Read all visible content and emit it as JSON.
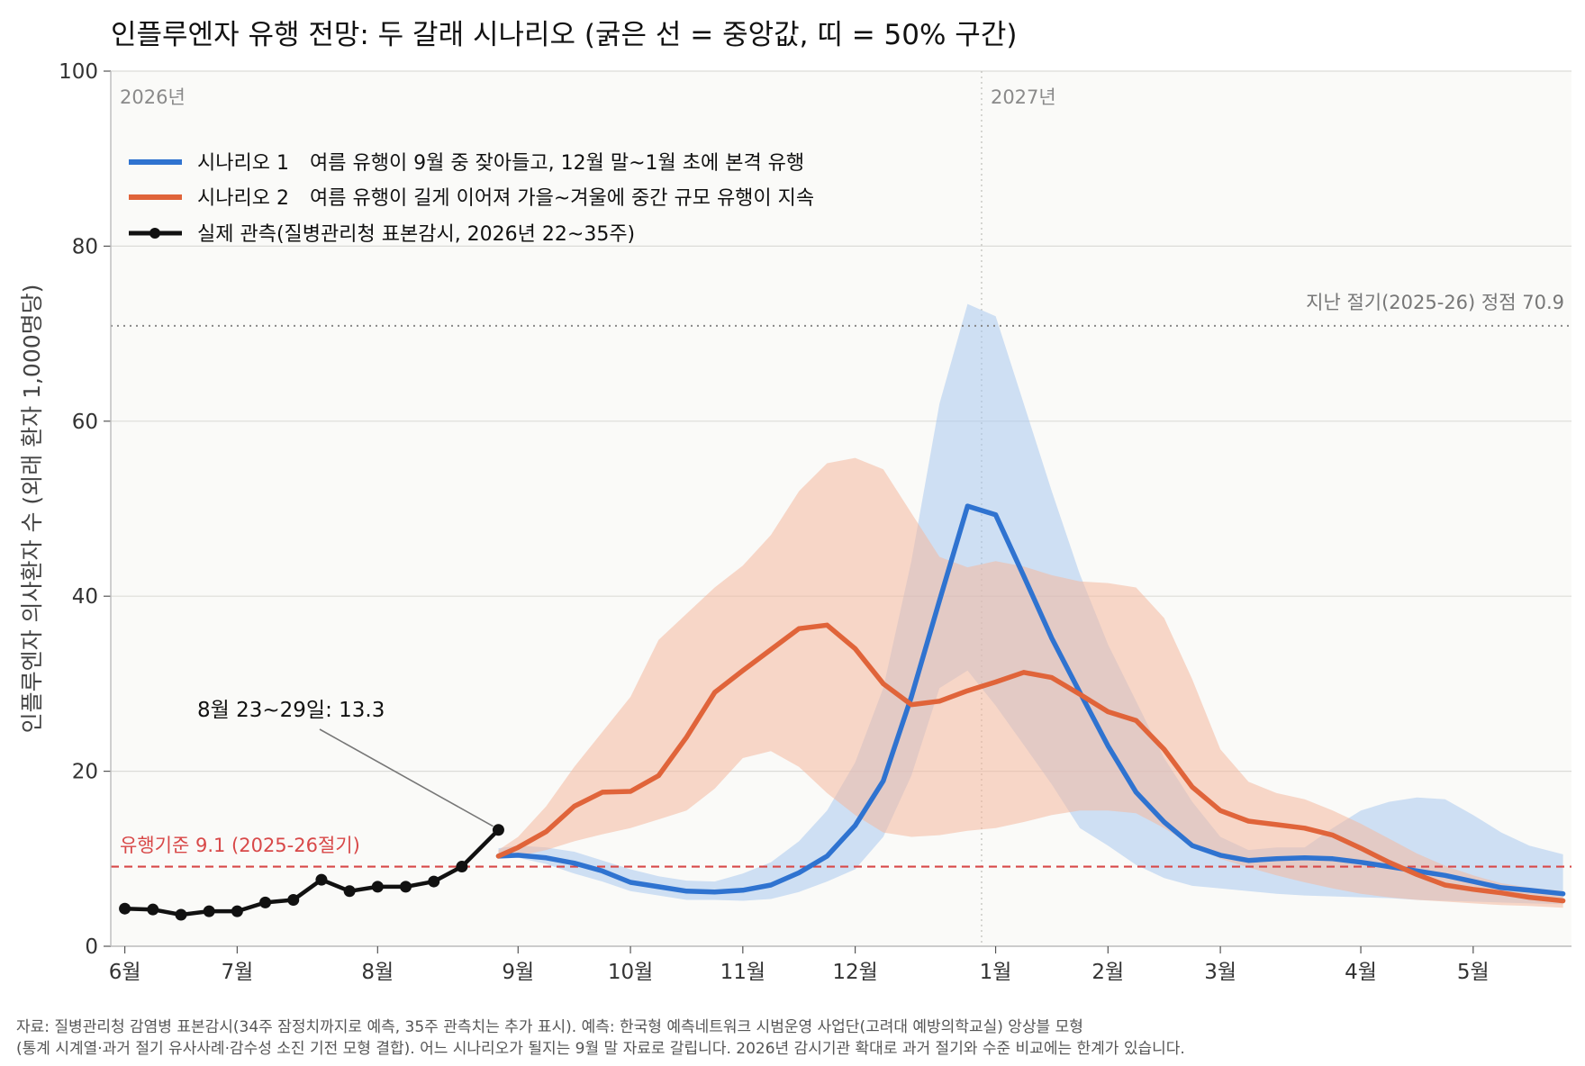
{
  "chart_data": {
    "type": "line",
    "title": "인플루엔자 유행 전망: 두 갈래 시나리오 (굵은 선 = 중앙값, 띠 = 50% 구간)",
    "ylabel": "인플루엔자 의사환자 수 (외래 환자 1,000명당)",
    "xlabel": "",
    "ylim": [
      0,
      100
    ],
    "yticks": [
      "0",
      "20",
      "40",
      "60",
      "80",
      "100"
    ],
    "grid": "horizontal",
    "legend_position": "top-left",
    "x_axis": {
      "unit": "weeks from June 1, 2026",
      "range": [
        -0.5,
        51.5
      ],
      "ticks": [
        {
          "label": "6월",
          "week": 0
        },
        {
          "label": "7월",
          "week": 4
        },
        {
          "label": "8월",
          "week": 9
        },
        {
          "label": "9월",
          "week": 14
        },
        {
          "label": "10월",
          "week": 18
        },
        {
          "label": "11월",
          "week": 22
        },
        {
          "label": "12월",
          "week": 26
        },
        {
          "label": "1월",
          "week": 31
        },
        {
          "label": "2월",
          "week": 35
        },
        {
          "label": "3월",
          "week": 39
        },
        {
          "label": "4월",
          "week": 44
        },
        {
          "label": "5월",
          "week": 48
        }
      ]
    },
    "year_labels": [
      {
        "text": "2026년",
        "week": -0.5
      },
      {
        "text": "2027년",
        "week": 30.5
      }
    ],
    "year_divider_week": 30.5,
    "reference_lines": [
      {
        "label": "지난 절기(2025-26) 정점 70.9",
        "value": 70.9,
        "color": "#888888",
        "style": "dotted"
      },
      {
        "label": "유행기준 9.1 (2025-26절기)",
        "value": 9.1,
        "color": "#d84848",
        "style": "dashed"
      }
    ],
    "series": [
      {
        "name": "시나리오 1",
        "description": "여름 유행이 9월 중 잦아들고, 12월 말~1월 초에 본격 유행",
        "color": "#2f73d0",
        "band_color": "#a9c9ef",
        "x": [
          13.3,
          14,
          15,
          16,
          17,
          18,
          19,
          20,
          21,
          22,
          23,
          24,
          25,
          26,
          27,
          28,
          29,
          30,
          31,
          32,
          33,
          34,
          35,
          36,
          37,
          38,
          39,
          40,
          41,
          42,
          43,
          44,
          45,
          46,
          47,
          48,
          49,
          50,
          51.2
        ],
        "median": [
          10.3,
          10.4,
          10.1,
          9.5,
          8.6,
          7.3,
          6.8,
          6.3,
          6.2,
          6.4,
          7.0,
          8.4,
          10.3,
          13.8,
          18.9,
          28.5,
          39.5,
          50.3,
          49.3,
          42.3,
          35.2,
          29.0,
          22.9,
          17.6,
          14.2,
          11.5,
          10.4,
          9.8,
          10.0,
          10.1,
          10.0,
          9.6,
          9.1,
          8.6,
          8.1,
          7.4,
          6.7,
          6.4,
          6.0
        ],
        "lower": [
          10.0,
          10.1,
          9.4,
          8.3,
          7.4,
          6.3,
          5.8,
          5.3,
          5.3,
          5.2,
          5.4,
          6.2,
          7.4,
          8.8,
          12.5,
          19.5,
          29.5,
          31.5,
          27.5,
          23.0,
          18.5,
          13.5,
          11.5,
          9.3,
          7.8,
          6.9,
          6.6,
          6.3,
          6.0,
          5.8,
          5.7,
          5.6,
          5.5,
          5.3,
          5.2,
          5.1,
          5.0,
          4.9,
          4.8
        ],
        "upper": [
          11.2,
          11.5,
          11.3,
          10.8,
          9.8,
          8.8,
          8.0,
          7.5,
          7.4,
          8.3,
          9.6,
          12.0,
          15.5,
          21.0,
          29.5,
          44.0,
          62.0,
          73.4,
          72.0,
          62.0,
          52.0,
          42.5,
          34.5,
          28.0,
          21.5,
          16.5,
          12.5,
          11.0,
          11.3,
          11.3,
          13.5,
          15.5,
          16.5,
          17.0,
          16.8,
          15.0,
          13.0,
          11.5,
          10.5
        ]
      },
      {
        "name": "시나리오 2",
        "description": "여름 유행이 길게 이어져 가을~겨울에 중간 규모 유행이 지속",
        "color": "#e0643a",
        "band_color": "#f4b89e",
        "x": [
          13.3,
          14,
          15,
          16,
          17,
          18,
          19,
          20,
          21,
          22,
          23,
          24,
          25,
          26,
          27,
          28,
          29,
          30,
          31,
          32,
          33,
          34,
          35,
          36,
          37,
          38,
          39,
          40,
          41,
          42,
          43,
          44,
          45,
          46,
          47,
          48,
          49,
          50,
          51.2
        ],
        "median": [
          10.3,
          11.3,
          13.1,
          16.0,
          17.6,
          17.7,
          19.5,
          23.9,
          29.0,
          31.5,
          33.9,
          36.3,
          36.7,
          34.0,
          30.0,
          27.6,
          28.0,
          29.2,
          30.2,
          31.3,
          30.7,
          28.8,
          26.8,
          25.8,
          22.5,
          18.2,
          15.5,
          14.3,
          13.9,
          13.5,
          12.7,
          11.2,
          9.6,
          8.2,
          7.0,
          6.5,
          6.1,
          5.6,
          5.2
        ],
        "lower": [
          10.0,
          10.3,
          11.0,
          12.0,
          12.8,
          13.5,
          14.5,
          15.5,
          18.0,
          21.5,
          22.3,
          20.5,
          17.5,
          15.0,
          13.0,
          12.5,
          12.7,
          13.2,
          13.5,
          14.2,
          15.0,
          15.5,
          15.5,
          15.2,
          13.5,
          11.5,
          10.0,
          9.0,
          8.1,
          7.3,
          6.6,
          6.0,
          5.6,
          5.3,
          5.1,
          4.9,
          4.7,
          4.6,
          4.4
        ],
        "upper": [
          11.0,
          12.5,
          16.0,
          20.5,
          24.5,
          28.5,
          35.0,
          38.0,
          41.0,
          43.5,
          47.0,
          52.0,
          55.2,
          55.8,
          54.5,
          49.5,
          44.5,
          43.3,
          44.0,
          43.4,
          42.4,
          41.7,
          41.5,
          41.0,
          37.5,
          30.5,
          22.5,
          18.8,
          17.5,
          16.8,
          15.5,
          14.0,
          12.3,
          10.6,
          9.2,
          8.1,
          7.2,
          6.7,
          6.3
        ]
      },
      {
        "name": "실제 관측(질병관리청 표본감시, 2026년 22~35주)",
        "color": "#111111",
        "x": [
          0,
          1,
          2,
          3,
          4,
          5,
          6,
          7,
          8,
          9,
          10,
          11,
          12,
          13.3
        ],
        "values": [
          4.3,
          4.2,
          3.6,
          4.0,
          4.0,
          5.0,
          5.3,
          7.6,
          6.3,
          6.8,
          6.8,
          7.4,
          9.1,
          13.3
        ]
      }
    ],
    "annotation": {
      "text": "8월 23~29일: 13.3",
      "target_week": 13.3,
      "target_value": 13.3
    },
    "source_lines": [
      "자료: 질병관리청 감염병 표본감시(34주 잠정치까지로 예측, 35주 관측치는 추가 표시). 예측: 한국형 예측네트워크 시범운영 사업단(고려대 예방의학교실) 앙상블 모형",
      "(통계 시계열·과거 절기 유사사례·감수성 소진 기전 모형 결합). 어느 시나리오가 될지는 9월 말 자료로 갈립니다. 2026년 감시기관 확대로 과거 절기와 수준 비교에는 한계가 있습니다."
    ]
  }
}
